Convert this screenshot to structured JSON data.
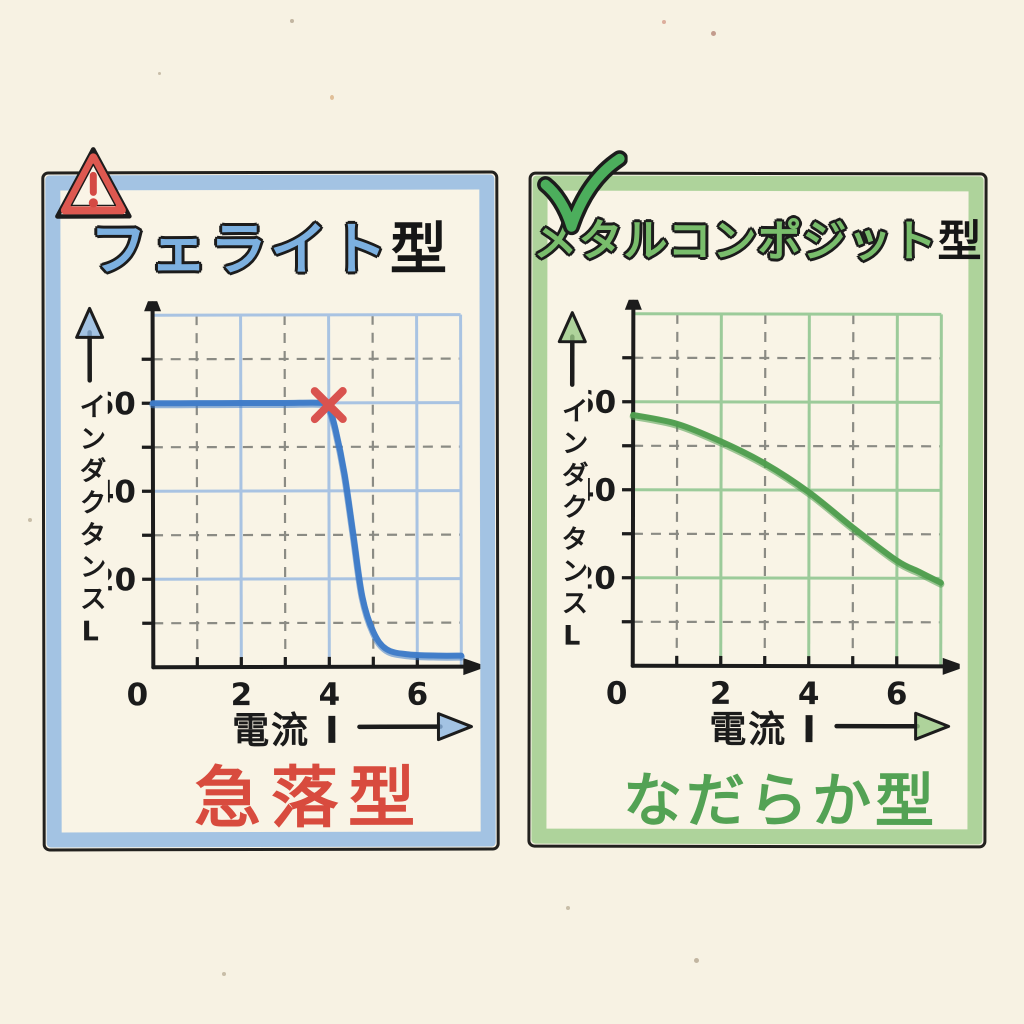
{
  "panels": [
    {
      "id": "ferrite",
      "badge": "warning-triangle-icon",
      "title_colored": "フェライト",
      "title_suffix": "型",
      "verdict": "急落型",
      "colors": {
        "accent": "#8db7e2",
        "title_fill": "#7cb0e0",
        "verdict": "#d84b3e",
        "badge_red": "#dd5850"
      }
    },
    {
      "id": "metal-composite",
      "badge": "check-mark-icon",
      "title_colored": "メタルコンポジット",
      "title_suffix": "型",
      "verdict": "なだらか型",
      "colors": {
        "accent": "#9bcb88",
        "title_fill": "#79bd6c",
        "verdict": "#53a254",
        "badge_green": "#4cae5c"
      }
    }
  ],
  "chart_data": [
    {
      "type": "line",
      "title": "フェライト型",
      "xlabel": "電流 I",
      "ylabel": "インダクタンスL",
      "xlim": [
        0,
        7
      ],
      "ylim": [
        0,
        80
      ],
      "xticks": [
        0,
        2,
        4,
        6
      ],
      "yticks": [
        20,
        40,
        60
      ],
      "tick_marks_x": [
        1,
        2,
        3,
        4,
        5,
        6
      ],
      "tick_marks_y": [
        10,
        20,
        30,
        40,
        50,
        60,
        70
      ],
      "grid": {
        "on": true,
        "solid_x": [
          2,
          4,
          6,
          7
        ],
        "dashed_x": [
          1,
          3,
          5
        ],
        "solid_y": [
          20,
          40,
          60,
          80
        ],
        "dashed_y": [
          10,
          30,
          50,
          70
        ],
        "solid_color": "#a9c3e2",
        "dashed_color": "#8b8b84"
      },
      "legend": "none",
      "series": [
        {
          "name": "inductance-vs-current-ferrite",
          "color": "#3e7bc8",
          "x": [
            0,
            1,
            2,
            3,
            3.85,
            4,
            4.15,
            4.35,
            4.55,
            4.75,
            5,
            5.3,
            5.8,
            6.5,
            7
          ],
          "y": [
            60,
            60,
            60,
            60,
            60,
            59,
            54,
            44,
            30,
            16,
            8,
            4,
            2.8,
            2.5,
            2.5
          ]
        }
      ],
      "annotations": [
        {
          "type": "x-marker",
          "x": 4,
          "y": 59.5,
          "color": "#d9534f",
          "meaning": "saturation-drop-point"
        }
      ]
    },
    {
      "type": "line",
      "title": "メタルコンポジット型",
      "xlabel": "電流 I",
      "ylabel": "インダクタンスL",
      "xlim": [
        0,
        7
      ],
      "ylim": [
        0,
        80
      ],
      "xticks": [
        0,
        2,
        4,
        6
      ],
      "yticks": [
        20,
        40,
        60
      ],
      "tick_marks_x": [
        1,
        2,
        3,
        4,
        5,
        6
      ],
      "tick_marks_y": [
        10,
        20,
        30,
        40,
        50,
        60,
        70
      ],
      "grid": {
        "on": true,
        "solid_x": [
          2,
          4,
          6,
          7
        ],
        "dashed_x": [
          1,
          3,
          5
        ],
        "solid_y": [
          20,
          40,
          60,
          80
        ],
        "dashed_y": [
          10,
          30,
          50,
          70
        ],
        "solid_color": "#9ccb9a",
        "dashed_color": "#8b8b84"
      },
      "legend": "none",
      "series": [
        {
          "name": "inductance-vs-current-metal-composite",
          "color": "#4f9e4e",
          "x": [
            0,
            1,
            2,
            3,
            4,
            5,
            6,
            6.5,
            7
          ],
          "y": [
            57,
            55,
            51,
            46,
            39.5,
            31.5,
            24,
            21.5,
            19
          ]
        }
      ],
      "annotations": []
    }
  ]
}
